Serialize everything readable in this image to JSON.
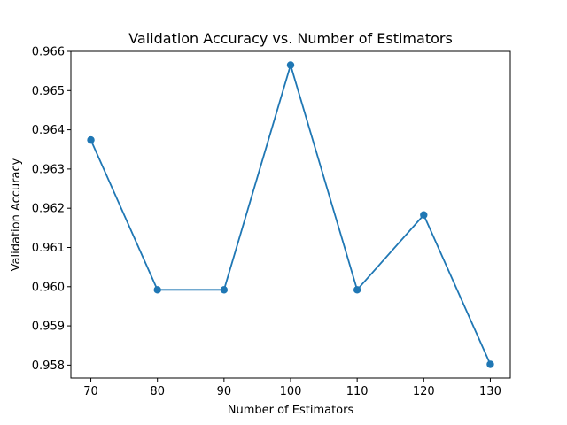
{
  "chart_data": {
    "type": "line",
    "title": "Validation Accuracy vs. Number of Estimators",
    "xlabel": "Number of Estimators",
    "ylabel": "Validation Accuracy",
    "x": [
      70,
      80,
      90,
      100,
      110,
      120,
      130
    ],
    "xticks": [
      "70",
      "80",
      "90",
      "100",
      "110",
      "120",
      "130"
    ],
    "yticks": [
      "0.958",
      "0.959",
      "0.960",
      "0.961",
      "0.962",
      "0.963",
      "0.964",
      "0.965",
      "0.966"
    ],
    "xlim": [
      67,
      133
    ],
    "ylim": [
      0.95767,
      0.966
    ],
    "series": [
      {
        "values": [
          0.96374,
          0.95992,
          0.95992,
          0.96565,
          0.95992,
          0.96183,
          0.95802
        ],
        "color": "#1f77b4",
        "marker": "circle"
      }
    ],
    "grid": false,
    "legend": "none"
  }
}
